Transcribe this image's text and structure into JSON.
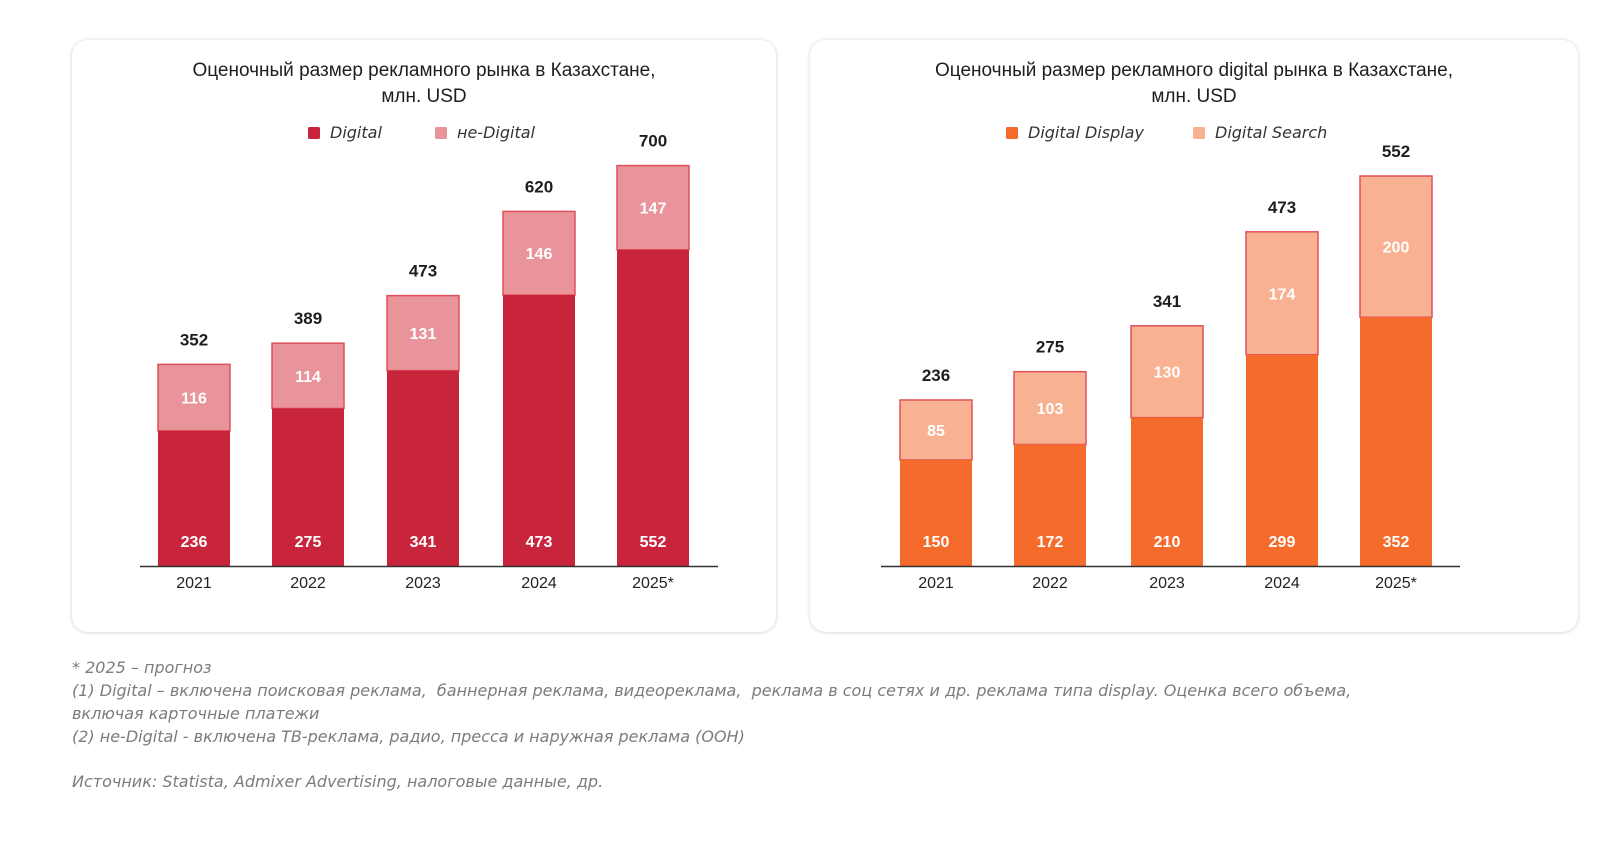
{
  "chart_data": [
    {
      "type": "bar",
      "stacked": true,
      "title_lines": [
        "Оценочный размер рекламного рынка в Казахстане,",
        "млн. USD"
      ],
      "categories": [
        "2021",
        "2022",
        "2023",
        "2024",
        "2025*"
      ],
      "series": [
        {
          "name": "Digital",
          "values": [
            236,
            275,
            341,
            473,
            552
          ],
          "color": "#c8253c"
        },
        {
          "name": "не-Digital",
          "values": [
            116,
            114,
            131,
            146,
            147
          ],
          "color": "#e9939a"
        }
      ],
      "totals": [
        "352",
        "389",
        "473",
        "620",
        "700"
      ],
      "bottom_labels": [
        "236",
        "275",
        "341",
        "473",
        "552"
      ],
      "top_labels": [
        "116",
        "114",
        "131",
        "146",
        "147"
      ],
      "ylim": [
        0,
        700
      ],
      "legend_position": "top",
      "grid": false
    },
    {
      "type": "bar",
      "stacked": true,
      "title_lines": [
        "Оценочный размер  рекламного digital рынка в Казахстане,",
        "млн. USD"
      ],
      "categories": [
        "2021",
        "2022",
        "2023",
        "2024",
        "2025*"
      ],
      "series": [
        {
          "name": "Digital Display",
          "values": [
            150,
            172,
            210,
            299,
            352
          ],
          "color": "#f56b2c"
        },
        {
          "name": "Digital Search",
          "values": [
            85,
            103,
            130,
            174,
            200
          ],
          "color": "#f8b291"
        }
      ],
      "totals": [
        "236",
        "275",
        "341",
        "473",
        "552"
      ],
      "bottom_labels": [
        "150",
        "172",
        "210",
        "299",
        "352"
      ],
      "top_labels": [
        "85",
        "103",
        "130",
        "174",
        "200"
      ],
      "ylim": [
        0,
        552
      ],
      "legend_position": "top",
      "grid": false
    }
  ],
  "style": {
    "segment_outline": "#e0505a",
    "axis_color": "#333333",
    "total_label_color": "#1e1e1e",
    "inner_label_color": "#ffffff",
    "card_background": "#ffffff"
  },
  "notes": {
    "forecast": "* 2025 – прогноз",
    "note1_line1": "(1) Digital – включена поисковая реклама,  баннерная реклама, видеореклама,  реклама в соц сетях и др. реклама типа display. Оценка всего объема,",
    "note1_line2": "включая карточные платежи",
    "note2": "(2) не-Digital - включена ТВ-реклама, радио, пресса и наружная реклама (ООН)",
    "source": "Источник: Statista, Admixer Advertising, налоговые данные, др."
  }
}
